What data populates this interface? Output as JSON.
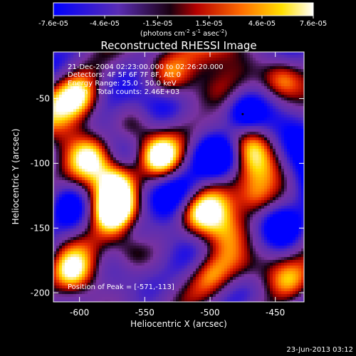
{
  "colorbar": {
    "tick_labels": [
      "-7.6e-05",
      "-4.6e-05",
      "-1.5e-05",
      "1.5e-05",
      "4.6e-05",
      "7.6e-05"
    ],
    "tick_values": [
      -7.6e-05,
      -4.6e-05,
      -1.5e-05,
      1.5e-05,
      4.6e-05,
      7.6e-05
    ],
    "range": [
      -7.6e-05,
      7.6e-05
    ],
    "unit_main": "(photons cm",
    "unit_sup1": "-2",
    "unit_mid": " s",
    "unit_sup2": "-1",
    "unit_mid2": " asec",
    "unit_sup3": "-2",
    "unit_close": ")"
  },
  "chart_data": {
    "type": "heatmap",
    "title": "Reconstructed RHESSI Image",
    "xlabel": "Heliocentric X (arcsec)",
    "ylabel": "Heliocentric Y (arcsec)",
    "xlim": [
      -620,
      -428
    ],
    "ylim": [
      -207,
      -14
    ],
    "xticks": [
      -600,
      -550,
      -500,
      -450
    ],
    "yticks": [
      -50,
      -100,
      -150,
      -200
    ],
    "xtick_labels": [
      "-600",
      "-550",
      "-500",
      "-450"
    ],
    "ytick_labels": [
      "-50",
      "-100",
      "-150",
      "-200"
    ],
    "colormap": "blue-purple-red-yellow-white",
    "annotations": [
      "21-Dec-2004 02:23:00.000 to 02:26:20.000",
      "Detectors: 4F 5F 6F 7F 8F, Att 0",
      "Energy Range: 25.0 - 50.0 keV",
      "Clean    Total counts: 2.46E+03"
    ],
    "peak_label": "Position of Peak = [-571,-113]",
    "peak": [
      -571,
      -113
    ],
    "bright_sources": [
      {
        "x": -600,
        "y": -50,
        "level": 0.85
      },
      {
        "x": -590,
        "y": -95,
        "level": 0.7
      },
      {
        "x": -571,
        "y": -113,
        "level": 1.0
      },
      {
        "x": -575,
        "y": -135,
        "level": 0.95
      },
      {
        "x": -540,
        "y": -95,
        "level": 0.9
      },
      {
        "x": -560,
        "y": -70,
        "level": 0.6
      },
      {
        "x": -445,
        "y": -35,
        "level": 0.85
      },
      {
        "x": -530,
        "y": -35,
        "level": 0.55
      },
      {
        "x": -465,
        "y": -128,
        "level": 0.8
      },
      {
        "x": -500,
        "y": -185,
        "level": 0.6
      },
      {
        "x": -605,
        "y": -185,
        "level": 0.7
      },
      {
        "x": -560,
        "y": -170,
        "level": 0.55
      },
      {
        "x": -470,
        "y": -85,
        "level": 0.5
      },
      {
        "x": -510,
        "y": -140,
        "level": 0.4
      },
      {
        "x": -440,
        "y": -190,
        "level": 0.55
      },
      {
        "x": -545,
        "y": -145,
        "level": 0.5
      }
    ],
    "dark_sources": [
      {
        "x": -490,
        "y": -95,
        "level": -0.7
      },
      {
        "x": -475,
        "y": -60,
        "level": -0.9
      },
      {
        "x": -555,
        "y": -150,
        "level": -0.6
      },
      {
        "x": -500,
        "y": -60,
        "level": -0.5
      },
      {
        "x": -445,
        "y": -150,
        "level": -0.6
      },
      {
        "x": -610,
        "y": -130,
        "level": -0.5
      },
      {
        "x": -520,
        "y": -120,
        "level": -0.6
      },
      {
        "x": -470,
        "y": -165,
        "level": -0.5
      }
    ]
  },
  "footer": {
    "timestamp": "23-Jun-2013 03:12"
  }
}
